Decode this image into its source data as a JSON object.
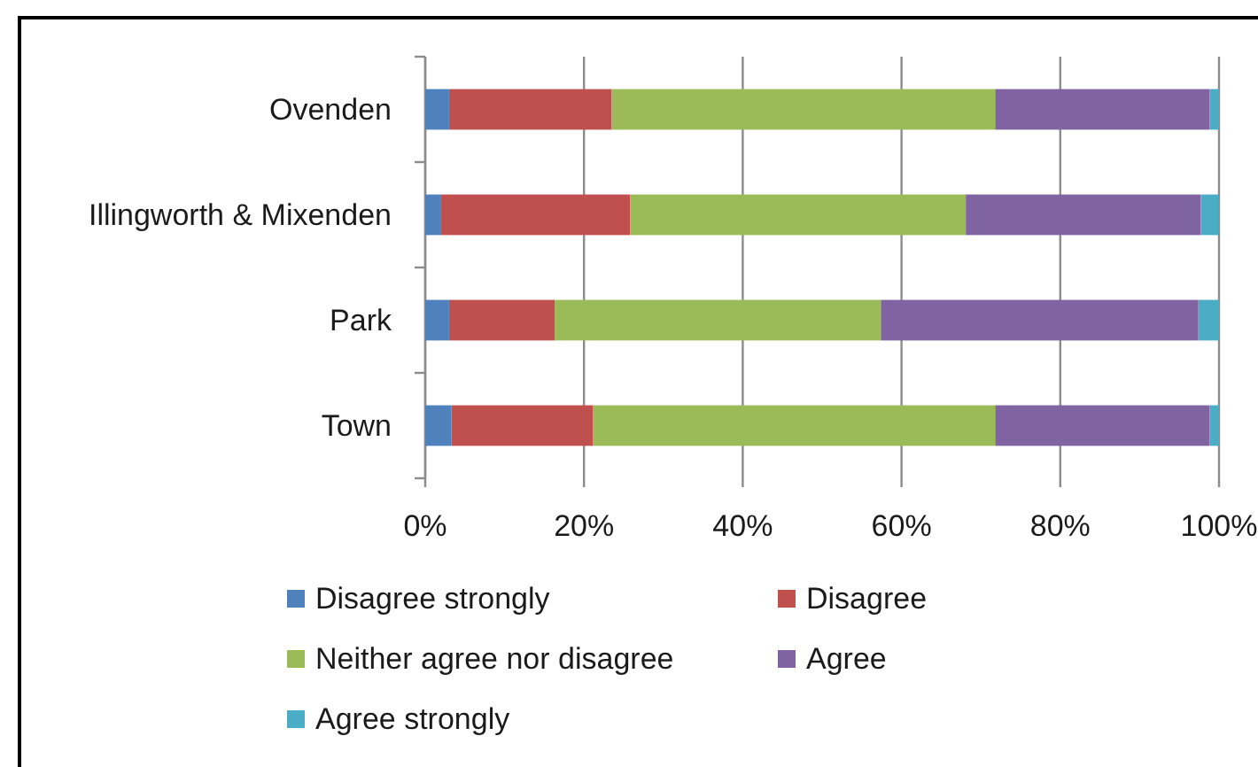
{
  "chart_data": {
    "type": "bar",
    "orientation": "horizontal",
    "stacked": true,
    "categories": [
      "Ovenden",
      "Illingworth & Mixenden",
      "Park",
      "Town"
    ],
    "series": [
      {
        "name": "Disagree strongly",
        "color": "#4f81bd",
        "values": [
          3.0,
          2.0,
          3.0,
          3.3
        ]
      },
      {
        "name": "Disagree",
        "color": "#c0504d",
        "values": [
          20.5,
          23.8,
          13.3,
          17.8
        ]
      },
      {
        "name": "Neither agree nor disagree",
        "color": "#9bbb59",
        "values": [
          48.3,
          42.3,
          41.1,
          50.7
        ]
      },
      {
        "name": "Agree",
        "color": "#8064a2",
        "values": [
          27.0,
          29.6,
          40.0,
          27.0
        ]
      },
      {
        "name": "Agree strongly",
        "color": "#4bacc6",
        "values": [
          1.2,
          2.2,
          2.6,
          1.2
        ]
      }
    ],
    "xlim": [
      0,
      100
    ],
    "xticks": [
      {
        "value": 0,
        "label": "0%"
      },
      {
        "value": 20,
        "label": "20%"
      },
      {
        "value": 40,
        "label": "40%"
      },
      {
        "value": 60,
        "label": "60%"
      },
      {
        "value": 80,
        "label": "80%"
      },
      {
        "value": 100,
        "label": "100%"
      }
    ],
    "grid": "x",
    "legend": "bottom"
  }
}
